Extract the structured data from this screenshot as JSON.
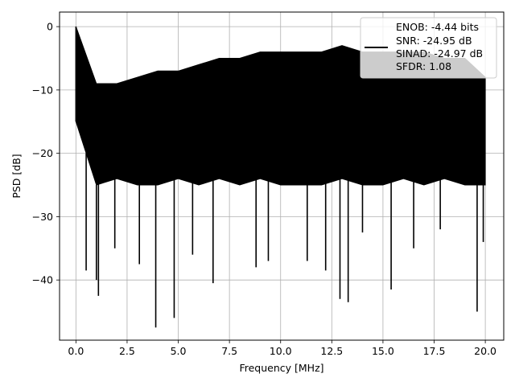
{
  "chart_data": {
    "type": "line",
    "title": "",
    "xlabel": "Frequency [MHz]",
    "ylabel": "PSD [dB]",
    "xlim": [
      -0.8,
      20.9
    ],
    "ylim": [
      -49.5,
      2.3
    ],
    "grid": true,
    "legend_placement": "top-right",
    "xticks": [
      0.0,
      2.5,
      5.0,
      7.5,
      10.0,
      12.5,
      15.0,
      17.5,
      20.0
    ],
    "xtick_labels": [
      "0.0",
      "2.5",
      "5.0",
      "7.5",
      "10.0",
      "12.5",
      "15.0",
      "17.5",
      "20.0"
    ],
    "yticks": [
      0,
      -10,
      -20,
      -30,
      -40
    ],
    "ytick_labels": [
      "0",
      "−10",
      "−20",
      "−30",
      "−40"
    ],
    "legend": {
      "line_color": "#000000",
      "entries": [
        "ENOB: -4.44 bits",
        "SNR: -24.95 dB",
        "SINAD: -24.97 dB",
        "SFDR: 1.08"
      ]
    },
    "series": [
      {
        "color": "#000000",
        "band": {
          "x": [
            0.0,
            1.0,
            2.0,
            3.0,
            4.0,
            5.0,
            6.0,
            7.0,
            8.0,
            9.0,
            10.0,
            11.0,
            12.0,
            13.0,
            14.0,
            15.0,
            16.0,
            17.0,
            18.0,
            19.0,
            20.0
          ],
          "top": [
            0,
            -9,
            -9,
            -8,
            -7,
            -7,
            -6,
            -5,
            -5,
            -4,
            -4,
            -4,
            -4,
            -3,
            -4,
            -4,
            -4,
            -4,
            -5,
            -5,
            -8
          ],
          "bottom": [
            -15,
            -25,
            -24,
            -25,
            -25,
            -24,
            -25,
            -24,
            -25,
            -24,
            -25,
            -25,
            -25,
            -24,
            -25,
            -25,
            -24,
            -25,
            -24,
            -25,
            -25
          ]
        },
        "spikes": [
          {
            "x": 0.0,
            "y": 0.0
          },
          {
            "x": 0.5,
            "y": -38.5
          },
          {
            "x": 1.0,
            "y": -40.0
          },
          {
            "x": 1.1,
            "y": -42.5
          },
          {
            "x": 1.9,
            "y": -35.0
          },
          {
            "x": 3.1,
            "y": -37.5
          },
          {
            "x": 3.9,
            "y": -47.5
          },
          {
            "x": 4.8,
            "y": -46.0
          },
          {
            "x": 5.7,
            "y": -36.0
          },
          {
            "x": 6.7,
            "y": -40.5
          },
          {
            "x": 8.8,
            "y": -38.0
          },
          {
            "x": 9.4,
            "y": -37.0
          },
          {
            "x": 11.3,
            "y": -37.0
          },
          {
            "x": 12.2,
            "y": -38.5
          },
          {
            "x": 12.9,
            "y": -43.0
          },
          {
            "x": 13.3,
            "y": -43.5
          },
          {
            "x": 14.0,
            "y": -32.5
          },
          {
            "x": 15.4,
            "y": -41.5
          },
          {
            "x": 16.5,
            "y": -35.0
          },
          {
            "x": 17.8,
            "y": -32.0
          },
          {
            "x": 19.6,
            "y": -45.0
          },
          {
            "x": 19.9,
            "y": -34.0
          }
        ]
      }
    ]
  }
}
